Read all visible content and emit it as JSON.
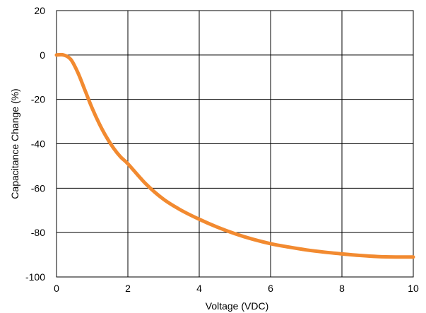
{
  "chart_data": {
    "type": "line",
    "title": "",
    "xlabel": "Voltage (VDC)",
    "ylabel": "Capacitance Change (%)",
    "xlim": [
      0,
      10
    ],
    "ylim": [
      -100,
      20
    ],
    "x_ticks": [
      "0",
      "2",
      "4",
      "6",
      "8",
      "10"
    ],
    "y_ticks": [
      "20",
      "0",
      "-20",
      "-40",
      "-60",
      "-80",
      "-100"
    ],
    "grid": true,
    "legend": "none",
    "series": [
      {
        "color": "#F28A30",
        "x": [
          0.0,
          0.2,
          0.4,
          0.6,
          0.8,
          1.0,
          1.2,
          1.4,
          1.6,
          1.8,
          2.0,
          2.5,
          3.0,
          3.5,
          4.0,
          4.5,
          5.0,
          5.5,
          6.0,
          6.5,
          7.0,
          7.5,
          8.0,
          8.5,
          9.0,
          9.5,
          10.0
        ],
        "y": [
          0,
          0,
          -2,
          -8,
          -16,
          -24,
          -31,
          -37,
          -42,
          -46,
          -49,
          -58,
          -65,
          -70,
          -74,
          -77.5,
          -80.5,
          -83,
          -85,
          -86.5,
          -87.8,
          -88.8,
          -89.6,
          -90.3,
          -90.8,
          -91,
          -91
        ]
      }
    ]
  }
}
